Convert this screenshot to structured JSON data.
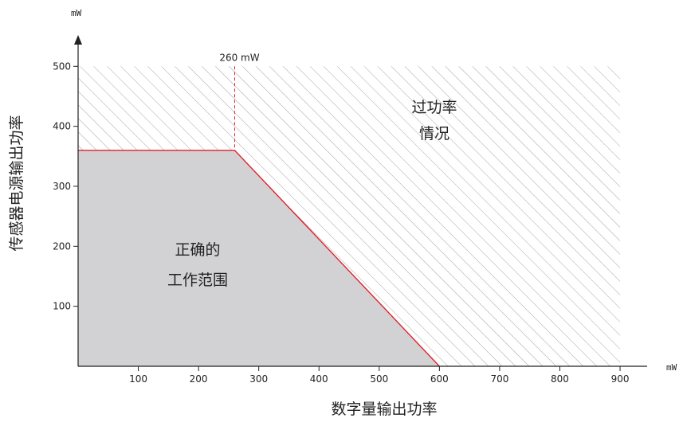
{
  "chart_data": {
    "type": "area",
    "xlabel": "数字量输出功率",
    "ylabel": "传感器电源输出功率",
    "x_unit": "mW",
    "y_unit": "mW",
    "xlim": [
      0,
      900
    ],
    "ylim": [
      0,
      500
    ],
    "x_ticks": [
      100,
      200,
      300,
      400,
      500,
      600,
      700,
      800,
      900
    ],
    "y_ticks": [
      100,
      200,
      300,
      400,
      500
    ],
    "boundary": [
      {
        "x": 0,
        "y": 360
      },
      {
        "x": 260,
        "y": 360
      },
      {
        "x": 600,
        "y": 0
      }
    ],
    "marker": {
      "x": 260,
      "label": "260 mW"
    },
    "regions": {
      "safe": [
        "正确的",
        "工作范围"
      ],
      "overload": [
        "过功率",
        "情况"
      ]
    },
    "colors": {
      "safe_fill": "#d2d2d4",
      "boundary": "#e0202a",
      "hatch": "#9a9a9a",
      "axis": "#222222"
    }
  }
}
